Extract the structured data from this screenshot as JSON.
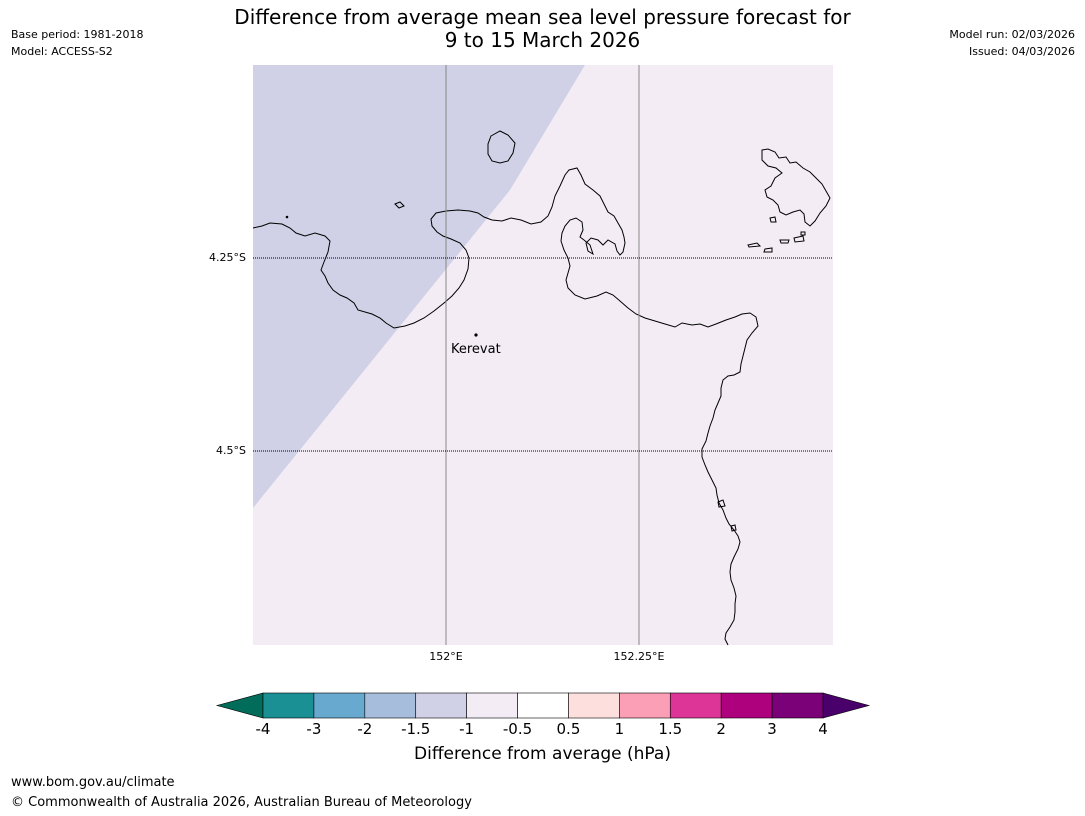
{
  "header": {
    "title_line1": "Difference from average mean sea level pressure forecast for",
    "title_line2": "9 to 15 March 2026",
    "base_period": "Base period: 1981-2018",
    "model": "Model: ACCESS-S2",
    "model_run": "Model run: 02/03/2026",
    "issued": "Issued: 04/03/2026"
  },
  "map": {
    "latitude_labels": [
      "4.25°S",
      "4.5°S"
    ],
    "longitude_labels": [
      "152°E",
      "152.25°E"
    ],
    "place_name": "Kerevat",
    "region_colors": {
      "negative_anomaly_-1.5_to_-1": "#d0d1e6",
      "anomaly_-1_to_-0.5": "#f3ecf5"
    }
  },
  "colorbar": {
    "ticks": [
      "-4",
      "-3",
      "-2",
      "-1.5",
      "-1",
      "-0.5",
      "0.5",
      "1",
      "1.5",
      "2",
      "3",
      "4"
    ],
    "colors": [
      "#1a9094",
      "#67a9cf",
      "#a6bddb",
      "#d0d1e6",
      "#f3ecf5",
      "#ffffff",
      "#fde0dd",
      "#fa9fb5",
      "#dd3497",
      "#ae017e",
      "#7a0177"
    ],
    "under_color": "#016c59",
    "over_color": "#49006a",
    "label": "Difference from average (hPa)"
  },
  "footer": {
    "url": "www.bom.gov.au/climate",
    "copyright": "© Commonwealth of Australia 2026, Australian Bureau of Meteorology"
  }
}
